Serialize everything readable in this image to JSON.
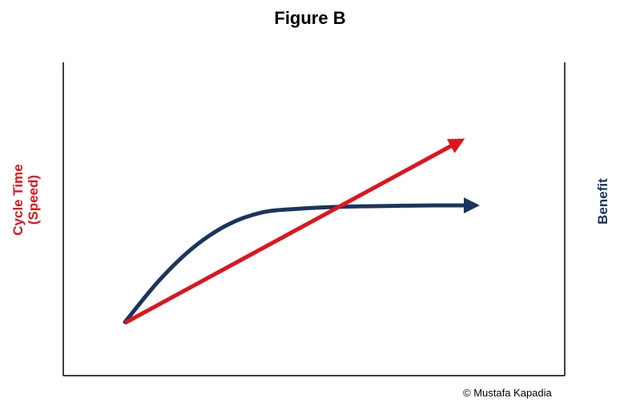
{
  "chart_data": {
    "type": "line",
    "title": "Figure B",
    "ylabel_left": [
      "Cycle Time",
      "(Speed)"
    ],
    "ylabel_right": "Benefit",
    "xlabel": "",
    "grid": false,
    "legend": "none",
    "series": [
      {
        "label_ref": "Cycle Time (Speed)",
        "color": "#e0141c",
        "shape": "straight-arrow",
        "x": [
          0,
          1
        ],
        "y": [
          0,
          1
        ]
      },
      {
        "label_ref": "Benefit",
        "color": "#1a355e",
        "shape": "saturating-curve-arrow",
        "x": [
          0,
          0.1,
          0.2,
          0.3,
          0.4,
          0.5,
          0.6,
          0.7,
          0.8,
          0.9,
          1.0
        ],
        "y": [
          0,
          0.24,
          0.43,
          0.56,
          0.63,
          0.65,
          0.66,
          0.665,
          0.668,
          0.67,
          0.67
        ]
      }
    ]
  },
  "footer": {
    "copyright": "© Mustafa Kapadia"
  }
}
